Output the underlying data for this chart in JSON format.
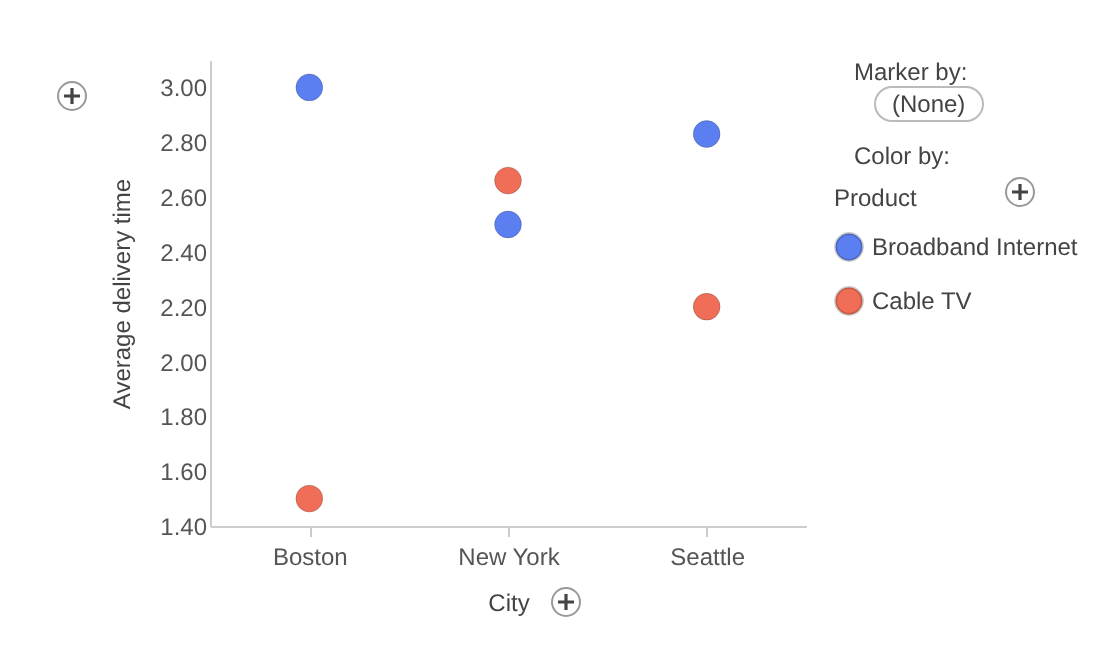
{
  "chart_data": {
    "type": "scatter",
    "xlabel": "City",
    "ylabel": "Average delivery time",
    "legend_title": "Product",
    "categories": [
      "Boston",
      "New York",
      "Seattle"
    ],
    "series": [
      {
        "name": "Broadband Internet",
        "color": "#5b7ff0",
        "values": [
          3.0,
          2.5,
          2.83
        ]
      },
      {
        "name": "Cable TV",
        "color": "#f06e57",
        "values": [
          1.5,
          2.66,
          2.2
        ]
      }
    ],
    "ylim": [
      1.4,
      3.1
    ],
    "yticks": [
      {
        "value": 1.4,
        "label": "1.40"
      },
      {
        "value": 1.6,
        "label": "1.60"
      },
      {
        "value": 1.8,
        "label": "1.80"
      },
      {
        "value": 2.0,
        "label": "2.00"
      },
      {
        "value": 2.2,
        "label": "2.20"
      },
      {
        "value": 2.4,
        "label": "2.40"
      },
      {
        "value": 2.6,
        "label": "2.60"
      },
      {
        "value": 2.8,
        "label": "2.80"
      },
      {
        "value": 3.0,
        "label": "3.00"
      }
    ],
    "annotations": [
      "Marker by:",
      "(None)",
      "Color by:"
    ],
    "legend": "right",
    "marker": "circle",
    "grid": false
  }
}
